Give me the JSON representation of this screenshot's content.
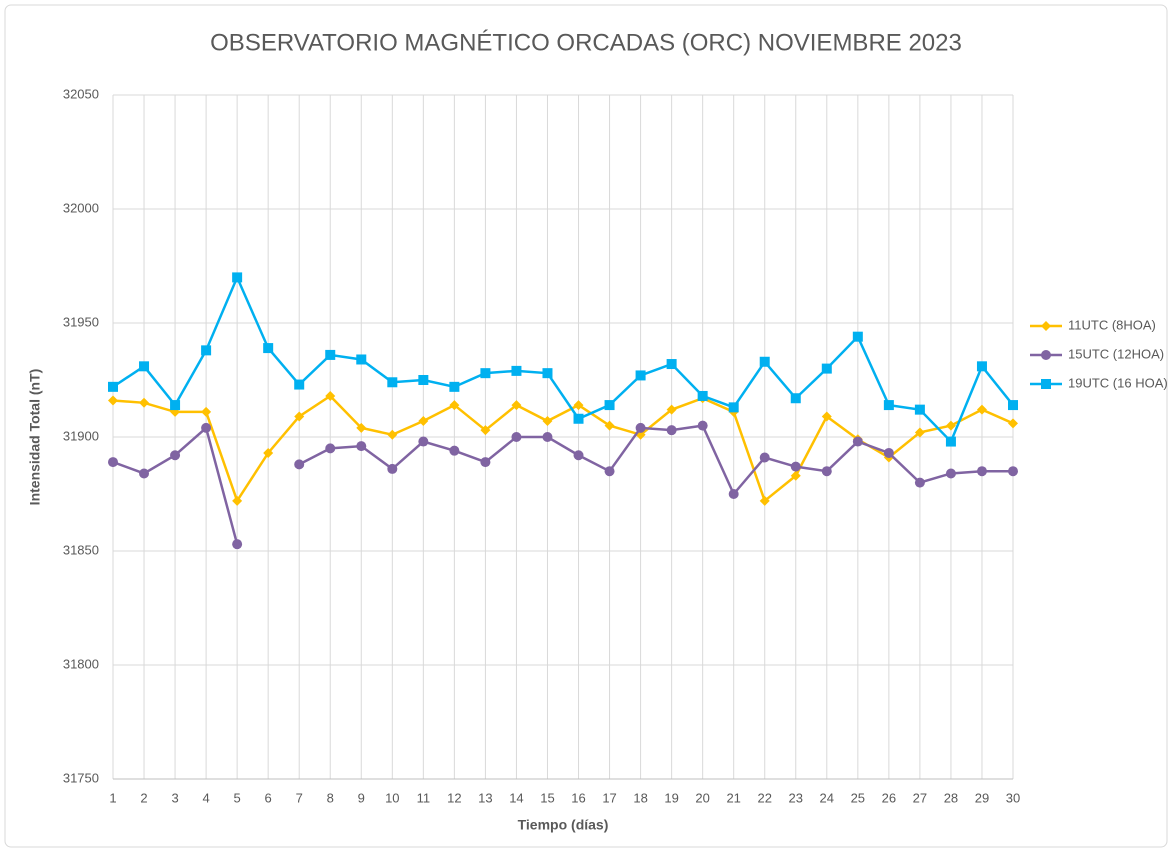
{
  "chart_data": {
    "type": "line",
    "title": "OBSERVATORIO MAGNÉTICO ORCADAS (ORC) NOVIEMBRE 2023",
    "x_label": "Tiempo (días)",
    "y_label": "Intensidad Total (nT)",
    "categories": [
      1,
      2,
      3,
      4,
      5,
      6,
      7,
      8,
      9,
      10,
      11,
      12,
      13,
      14,
      15,
      16,
      17,
      18,
      19,
      20,
      21,
      22,
      23,
      24,
      25,
      26,
      27,
      28,
      29,
      30
    ],
    "series": [
      {
        "name": "11UTC (8HOA)",
        "color": "#FFC000",
        "marker": "diamond",
        "values": [
          31916,
          31915,
          31911,
          31911,
          31872,
          31893,
          31909,
          31918,
          31904,
          31901,
          31907,
          31914,
          31903,
          31914,
          31907,
          31914,
          31905,
          31901,
          31912,
          31917,
          31911,
          31872,
          31883,
          31909,
          31899,
          31891,
          31902,
          31905,
          31912,
          31906
        ]
      },
      {
        "name": "15UTC (12HOA)",
        "color": "#8064A2",
        "marker": "circle",
        "values": [
          31889,
          31884,
          31892,
          31904,
          31853,
          null,
          31888,
          31895,
          31896,
          31886,
          31898,
          31894,
          31889,
          31900,
          31900,
          31892,
          31885,
          31904,
          31903,
          31905,
          31875,
          31891,
          31887,
          31885,
          31898,
          31893,
          31880,
          31884,
          31885,
          31885
        ]
      },
      {
        "name": "19UTC (16 HOA)",
        "color": "#00B0F0",
        "marker": "square",
        "values": [
          31922,
          31931,
          31914,
          31938,
          31970,
          31939,
          31923,
          31936,
          31934,
          31924,
          31925,
          31922,
          31928,
          31929,
          31928,
          31908,
          31914,
          31927,
          31932,
          31918,
          31913,
          31933,
          31917,
          31930,
          31944,
          31914,
          31912,
          31898,
          31931,
          31914
        ]
      }
    ],
    "ylim": [
      31750,
      32050
    ],
    "yticks": [
      31750,
      31800,
      31850,
      31900,
      31950,
      32000,
      32050
    ],
    "grid": true,
    "legend": "right"
  }
}
